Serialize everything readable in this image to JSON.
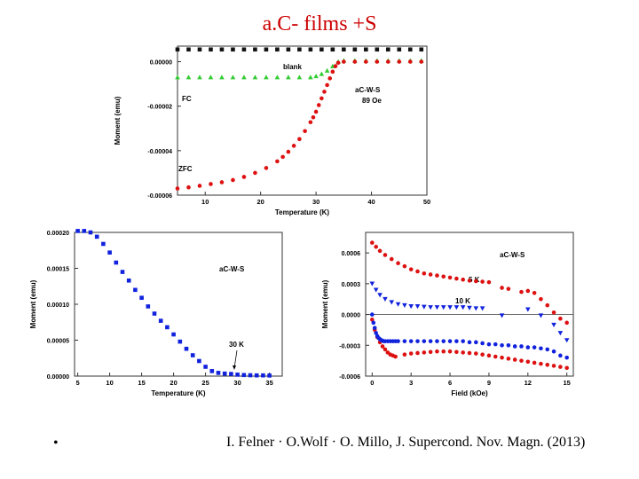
{
  "slide": {
    "title": "a.C- films +S",
    "bullet": "•",
    "citation": "I. Felner · O.Wolf · O. Millo, J. Supercond. Nov. Magn. (2013)"
  },
  "colors": {
    "red": "#dd1111",
    "green": "#33cc33",
    "blue": "#1122dd",
    "black": "#111111",
    "title": "#cc0000"
  },
  "chart_data": [
    {
      "type": "scatter",
      "title": "",
      "xlabel": "Temperature (K)",
      "ylabel": "Moment (emu)",
      "xlim": [
        5,
        50
      ],
      "ylim": [
        -6e-05,
        7e-06
      ],
      "xticks": [
        10,
        20,
        30,
        40,
        50
      ],
      "xtick_labels": [
        "10",
        "20",
        "30",
        "40",
        "50"
      ],
      "yticks": [
        0,
        -2e-05,
        -4e-05,
        -6e-05
      ],
      "ytick_labels": [
        "0.00000",
        "-0.00002",
        "-0.00004",
        "-0.00006"
      ],
      "annotations": [
        "blank",
        "FC",
        "aC-W-S",
        "89 Oe",
        "ZFC"
      ],
      "series": [
        {
          "name": "blank",
          "marker": "square",
          "color": "#111111",
          "x": [
            5,
            7,
            9,
            11,
            13,
            15,
            17,
            19,
            21,
            23,
            25,
            27,
            29,
            31,
            33,
            35,
            37,
            39,
            41,
            43,
            45,
            47,
            49
          ],
          "y": [
            5.5e-06,
            5.5e-06,
            5.5e-06,
            5.5e-06,
            5.5e-06,
            5.5e-06,
            5.5e-06,
            5.5e-06,
            5.5e-06,
            5.5e-06,
            5.5e-06,
            5.5e-06,
            5.5e-06,
            5.5e-06,
            5.5e-06,
            5.5e-06,
            5.5e-06,
            5.5e-06,
            5.5e-06,
            5.5e-06,
            5.5e-06,
            5.5e-06,
            5.5e-06
          ]
        },
        {
          "name": "FC",
          "marker": "triangle",
          "color": "#33cc33",
          "x": [
            5,
            7,
            9,
            11,
            13,
            15,
            17,
            19,
            21,
            23,
            25,
            27,
            29,
            30,
            31,
            32,
            33,
            34,
            35,
            37,
            39,
            41,
            43,
            45,
            47,
            49
          ],
          "y": [
            -7e-06,
            -7e-06,
            -7e-06,
            -7e-06,
            -7e-06,
            -7e-06,
            -7e-06,
            -7e-06,
            -7e-06,
            -7e-06,
            -7e-06,
            -7e-06,
            -7e-06,
            -6.5e-06,
            -5.5e-06,
            -4e-06,
            -2e-06,
            0,
            5e-07,
            5e-07,
            5e-07,
            5e-07,
            5e-07,
            5e-07,
            5e-07,
            5e-07
          ]
        },
        {
          "name": "ZFC",
          "marker": "circle",
          "color": "#dd1111",
          "x": [
            5,
            7,
            9,
            11,
            13,
            15,
            17,
            19,
            21,
            23,
            24,
            25,
            26,
            27,
            28,
            29,
            29.5,
            30,
            30.5,
            31,
            31.5,
            32,
            32.5,
            33,
            33.5,
            34,
            35,
            37,
            39,
            41,
            43,
            45,
            47,
            49
          ],
          "y": [
            -5.7e-05,
            -5.65e-05,
            -5.58e-05,
            -5.5e-05,
            -5.42e-05,
            -5.32e-05,
            -5.18e-05,
            -5e-05,
            -4.78e-05,
            -4.48e-05,
            -4.28e-05,
            -4.05e-05,
            -3.78e-05,
            -3.48e-05,
            -3.12e-05,
            -2.72e-05,
            -2.5e-05,
            -2.25e-05,
            -1.95e-05,
            -1.65e-05,
            -1.35e-05,
            -1.05e-05,
            -7.5e-06,
            -4.5e-06,
            -2e-06,
            -5e-07,
            0,
            0,
            0,
            0,
            0,
            0,
            0,
            0
          ]
        }
      ]
    },
    {
      "type": "scatter",
      "title": "",
      "xlabel": "Temperature (K)",
      "ylabel": "Moment (emu)",
      "xlim": [
        4.5,
        37
      ],
      "ylim": [
        0,
        0.0002
      ],
      "xticks": [
        5,
        10,
        15,
        20,
        25,
        30,
        35
      ],
      "xtick_labels": [
        "5",
        "10",
        "15",
        "20",
        "25",
        "30",
        "35"
      ],
      "yticks": [
        0,
        5e-05,
        0.0001,
        0.00015,
        0.0002
      ],
      "ytick_labels": [
        "0.00000",
        "0.00005",
        "0.00010",
        "0.00015",
        "0.00020"
      ],
      "annotations": [
        "aC-W-S",
        "30 K"
      ],
      "series": [
        {
          "name": "aC-W-S",
          "marker": "square",
          "color": "#1122dd",
          "x": [
            5,
            6,
            7,
            8,
            9,
            10,
            11,
            12,
            13,
            14,
            15,
            16,
            17,
            18,
            19,
            20,
            21,
            22,
            23,
            24,
            25,
            26,
            27,
            28,
            29,
            30,
            31,
            32,
            33,
            34,
            35
          ],
          "y": [
            0.000202,
            0.000202,
            0.0002,
            0.000194,
            0.000184,
            0.000172,
            0.000158,
            0.000145,
            0.000133,
            0.00012,
            0.000109,
            9.7e-05,
            8.7e-05,
            7.7e-05,
            6.8e-05,
            5.8e-05,
            4.8e-05,
            3.8e-05,
            2.9e-05,
            2.1e-05,
            1.3e-05,
            7e-06,
            4.5e-06,
            3.5e-06,
            3e-06,
            2e-06,
            1.5e-06,
            1.2e-06,
            1e-06,
            1e-06,
            8e-07
          ]
        }
      ]
    },
    {
      "type": "scatter",
      "title": "",
      "xlabel": "Field (kOe)",
      "ylabel": "Moment (emu)",
      "xlim": [
        -0.5,
        15.5
      ],
      "ylim": [
        -0.0006,
        0.0008
      ],
      "xticks": [
        0,
        3,
        6,
        9,
        12,
        15
      ],
      "xtick_labels": [
        "0",
        "3",
        "6",
        "9",
        "12",
        "15"
      ],
      "yticks": [
        0.0006,
        0.0003,
        0,
        -0.0003,
        -0.0006
      ],
      "ytick_labels": [
        "0.0006",
        "0.0003",
        "0.0000",
        "-0.0003",
        "-0.0006"
      ],
      "annotations": [
        "aC-W-S",
        "5 K",
        "10 K"
      ],
      "series": [
        {
          "name": "5 K upper",
          "marker": "circle",
          "color": "#dd1111",
          "x": [
            0,
            0.3,
            0.6,
            1,
            1.5,
            2,
            2.5,
            3,
            3.5,
            4,
            4.5,
            5,
            5.5,
            6,
            6.5,
            7,
            7.5,
            8,
            8.5,
            9,
            10,
            10.5,
            11.5,
            12,
            12.5,
            13,
            13.5,
            14,
            14.5,
            15
          ],
          "y": [
            0.0007,
            0.00066,
            0.00062,
            0.00058,
            0.00054,
            0.0005,
            0.00047,
            0.00044,
            0.00042,
            0.0004,
            0.00039,
            0.00038,
            0.00037,
            0.00036,
            0.00035,
            0.00034,
            0.00033,
            0.000325,
            0.00032,
            0.000315,
            0.00026,
            0.00025,
            0.00022,
            0.00023,
            0.00021,
            0.00015,
            9e-05,
            2e-05,
            -4e-05,
            -8e-05
          ]
        },
        {
          "name": "5 K lower",
          "marker": "circle",
          "color": "#dd1111",
          "x": [
            0,
            0.2,
            0.4,
            0.6,
            0.8,
            1,
            1.2,
            1.4,
            1.6,
            1.8,
            2.5,
            3,
            3.5,
            4,
            4.5,
            5,
            5.5,
            6,
            6.5,
            7,
            7.5,
            8,
            8.5,
            9,
            9.5,
            10,
            10.5,
            11,
            11.5,
            12,
            12.5,
            13,
            13.5,
            14,
            14.5,
            15
          ],
          "y": [
            -5e-05,
            -0.00015,
            -0.00022,
            -0.00027,
            -0.00031,
            -0.00034,
            -0.00037,
            -0.00039,
            -0.0004,
            -0.00041,
            -0.00039,
            -0.00038,
            -0.000375,
            -0.00037,
            -0.000365,
            -0.00036,
            -0.00036,
            -0.00036,
            -0.000365,
            -0.00037,
            -0.000375,
            -0.00038,
            -0.00039,
            -0.0004,
            -0.00041,
            -0.00042,
            -0.00043,
            -0.00044,
            -0.00045,
            -0.00046,
            -0.00047,
            -0.00048,
            -0.00049,
            -0.0005,
            -0.00051,
            -0.00052
          ]
        },
        {
          "name": "10 K upper",
          "marker": "triangle-down",
          "color": "#1122dd",
          "x": [
            0,
            0.3,
            0.6,
            1,
            1.5,
            2,
            2.5,
            3,
            3.5,
            4,
            4.5,
            5,
            5.5,
            6,
            6.5,
            7,
            7.5,
            8,
            8.5,
            10,
            12,
            13,
            14,
            14.5,
            15
          ],
          "y": [
            0.0003,
            0.00024,
            0.00019,
            0.00015,
            0.00012,
            0.0001,
            9e-05,
            8e-05,
            8e-05,
            7.5e-05,
            7e-05,
            7e-05,
            7e-05,
            7e-05,
            7e-05,
            7e-05,
            6.5e-05,
            6e-05,
            6e-05,
            -1e-05,
            5e-05,
            -1e-05,
            -0.0001,
            -0.00018,
            -0.00025
          ]
        },
        {
          "name": "10 K lower",
          "marker": "circle",
          "color": "#1122dd",
          "x": [
            0,
            0.1,
            0.2,
            0.3,
            0.4,
            0.5,
            0.6,
            0.7,
            0.8,
            0.9,
            1,
            1.2,
            1.4,
            1.6,
            1.8,
            2,
            2.5,
            3,
            3.5,
            4,
            4.5,
            5,
            5.5,
            6,
            6.5,
            7,
            7.5,
            8,
            8.5,
            9,
            9.5,
            10,
            10.5,
            11,
            11.5,
            12,
            12.5,
            13,
            13.5,
            14,
            14.5,
            15
          ],
          "y": [
            0,
            -8e-05,
            -0.00013,
            -0.00018,
            -0.00021,
            -0.00023,
            -0.00024,
            -0.00025,
            -0.000255,
            -0.00026,
            -0.00026,
            -0.00026,
            -0.00026,
            -0.00026,
            -0.00026,
            -0.00026,
            -0.00026,
            -0.00026,
            -0.00026,
            -0.00026,
            -0.00026,
            -0.00026,
            -0.00026,
            -0.00026,
            -0.00026,
            -0.00026,
            -0.00027,
            -0.00027,
            -0.00028,
            -0.00029,
            -0.00029,
            -0.0003,
            -0.0003,
            -0.00031,
            -0.00031,
            -0.00032,
            -0.00032,
            -0.00033,
            -0.00034,
            -0.00036,
            -0.0004,
            -0.00042
          ]
        }
      ]
    }
  ]
}
